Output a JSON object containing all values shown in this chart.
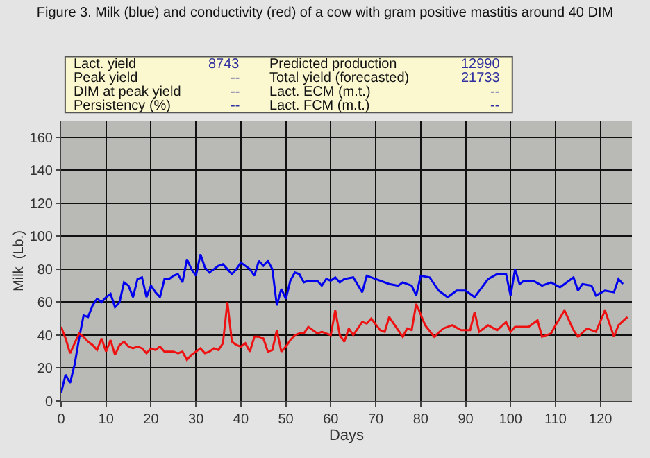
{
  "chart_data": {
    "type": "line",
    "title": "Figure 3. Milk (blue) and conductivity (red) of a cow with gram positive mastitis around 40 DIM",
    "xlabel": "Days",
    "ylabel": "Milk  (Lb.)",
    "annotations": [
      "Lact. yield",
      "8743",
      "Predicted production",
      "12990",
      "Peak yield",
      "--",
      "Total yield (forecasted)",
      "21733",
      "DIM at peak yield",
      "--",
      "Lact. ECM (m.t.)",
      "--",
      "Persistency (%)",
      "--",
      "Lact. FCM (m.t.)",
      "--"
    ],
    "series": [
      {
        "color": "#0000ee",
        "x": [
          0,
          1,
          2,
          3,
          4,
          5,
          6,
          7,
          8,
          9,
          10,
          11,
          12,
          13,
          14,
          15,
          16,
          17,
          18,
          19,
          20,
          21,
          22,
          23,
          24,
          25,
          26,
          27,
          28,
          29,
          30,
          31,
          32,
          33,
          34,
          35,
          36,
          37,
          38,
          39,
          40,
          41,
          42,
          43,
          44,
          45,
          46,
          47,
          48,
          49,
          50,
          51,
          52,
          53,
          54,
          55,
          56,
          57,
          58,
          59,
          60,
          61,
          62,
          63,
          65,
          67,
          68,
          70,
          73,
          75,
          76,
          78,
          79,
          80,
          82,
          84,
          86,
          88,
          90,
          92,
          95,
          97,
          99,
          100,
          101,
          102,
          103,
          105,
          107,
          109,
          111,
          112,
          114,
          115,
          116,
          118,
          119,
          121,
          123,
          124,
          125
        ],
        "values": [
          5,
          16,
          11,
          22,
          38,
          52,
          51,
          58,
          62,
          60,
          63,
          65,
          57,
          60,
          72,
          70,
          63,
          74,
          75,
          63,
          70,
          66,
          63,
          74,
          74,
          76,
          77,
          72,
          86,
          80,
          76,
          89,
          81,
          78,
          80,
          82,
          83,
          80,
          77,
          80,
          84,
          82,
          80,
          76,
          85,
          82,
          85,
          80,
          58,
          68,
          62,
          73,
          78,
          77,
          72,
          73,
          73,
          73,
          70,
          74,
          73,
          75,
          72,
          74,
          75,
          66,
          76,
          74,
          71,
          70,
          72,
          70,
          64,
          76,
          75,
          67,
          63,
          67,
          67,
          63,
          74,
          77,
          77,
          64,
          80,
          71,
          73,
          73,
          70,
          72,
          69,
          71,
          75,
          67,
          71,
          70,
          64,
          67,
          66,
          74,
          71
        ]
      },
      {
        "color": "#ee1111",
        "x": [
          0,
          1,
          2,
          3,
          4,
          5,
          6,
          7,
          8,
          9,
          10,
          11,
          12,
          13,
          14,
          15,
          16,
          17,
          18,
          19,
          20,
          21,
          22,
          23,
          24,
          25,
          26,
          27,
          28,
          29,
          30,
          31,
          32,
          33,
          34,
          35,
          36,
          37,
          38,
          39,
          40,
          41,
          42,
          43,
          44,
          45,
          46,
          47,
          48,
          49,
          50,
          51,
          52,
          53,
          54,
          55,
          56,
          57,
          58,
          59,
          60,
          61,
          62,
          63,
          64,
          65,
          67,
          68,
          69,
          71,
          72,
          73,
          75,
          76,
          77,
          78,
          79,
          81,
          83,
          85,
          87,
          89,
          91,
          92,
          93,
          95,
          97,
          99,
          100,
          101,
          104,
          106,
          107,
          109,
          110,
          112,
          114,
          115,
          117,
          119,
          121,
          123,
          124,
          126
        ],
        "values": [
          45,
          38,
          29,
          35,
          41,
          39,
          36,
          34,
          31,
          38,
          30,
          37,
          28,
          34,
          36,
          33,
          32,
          33,
          32,
          29,
          32,
          31,
          33,
          30,
          30,
          30,
          29,
          30,
          25,
          28,
          30,
          32,
          29,
          30,
          32,
          31,
          35,
          60,
          36,
          34,
          33,
          35,
          30,
          39,
          39,
          38,
          30,
          31,
          43,
          30,
          33,
          37,
          40,
          41,
          41,
          45,
          43,
          41,
          42,
          41,
          40,
          55,
          40,
          36,
          44,
          40,
          48,
          47,
          50,
          43,
          42,
          51,
          43,
          39,
          44,
          43,
          59,
          46,
          39,
          44,
          46,
          43,
          43,
          54,
          42,
          46,
          43,
          48,
          42,
          45,
          45,
          49,
          39,
          41,
          46,
          55,
          43,
          39,
          44,
          42,
          55,
          39,
          46,
          51
        ]
      }
    ],
    "xlim": [
      0,
      127
    ],
    "xticks": [
      0,
      10,
      20,
      30,
      40,
      50,
      60,
      70,
      80,
      90,
      100,
      110,
      120
    ],
    "ylim": [
      0,
      170
    ],
    "yticks": [
      0,
      20,
      40,
      60,
      80,
      100,
      120,
      140,
      160
    ],
    "grid": true,
    "marker": "none",
    "line_style": "solid"
  }
}
